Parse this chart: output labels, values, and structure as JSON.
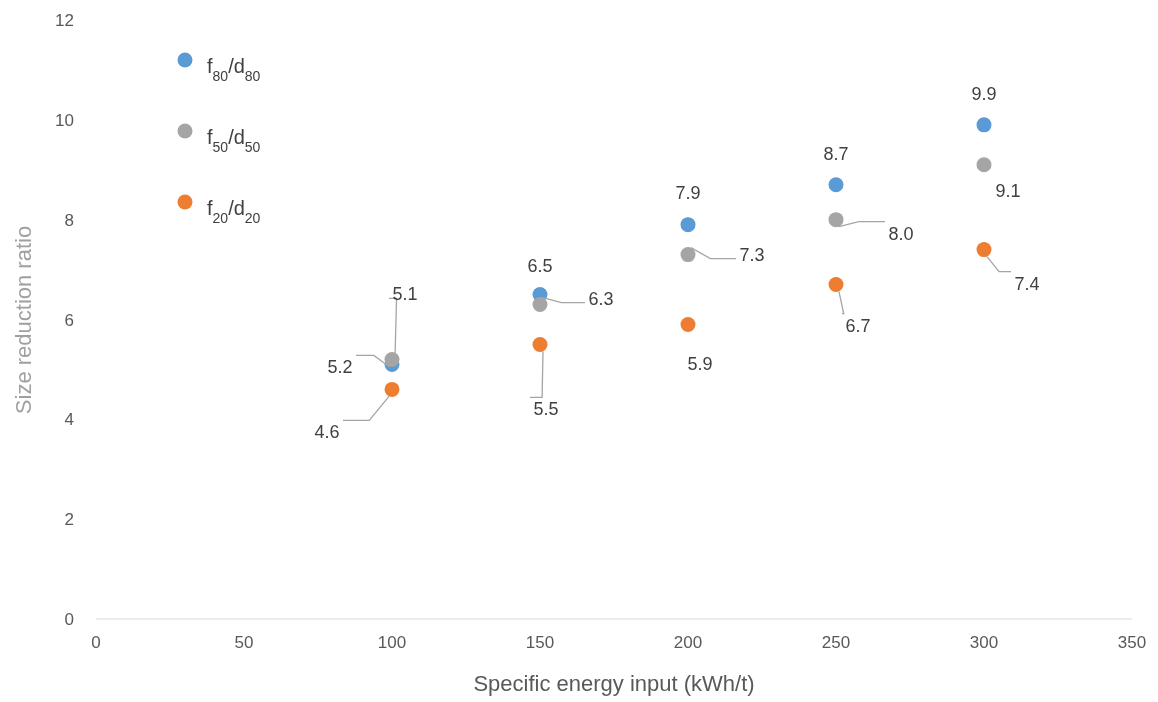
{
  "chart_data": {
    "type": "scatter",
    "xlabel": "Specific energy input (kWh/t)",
    "ylabel": "Size reduction ratio",
    "xlim": [
      0,
      350
    ],
    "xticks": [
      0,
      50,
      100,
      150,
      200,
      250,
      300,
      350
    ],
    "ylim": [
      0,
      12
    ],
    "yticks": [
      0,
      2,
      4,
      6,
      8,
      10,
      12
    ],
    "grid": false,
    "legend": "top left",
    "marker": "circle",
    "series": [
      {
        "name": "f$_{80}$/d$_{80}$",
        "color": "#5b9bd5",
        "x": [
          100,
          150,
          200,
          250,
          300
        ],
        "values": [
          5.1,
          6.5,
          7.9,
          8.7,
          9.9
        ],
        "value_labels": [
          "5.1",
          "6.5",
          "7.9",
          "8.7",
          "9.9"
        ]
      },
      {
        "name": "f$_{50}$/d$_{50}$",
        "color": "#a5a5a5",
        "x": [
          100,
          150,
          200,
          250,
          300
        ],
        "values": [
          5.2,
          6.3,
          7.3,
          8.0,
          9.1
        ],
        "value_labels": [
          "5.2",
          "6.3",
          "7.3",
          "8.0",
          "9.1"
        ]
      },
      {
        "name": "f$_{20}$/d$_{20}$",
        "color": "#ed7d31",
        "x": [
          100,
          150,
          200,
          250,
          300
        ],
        "values": [
          4.6,
          5.5,
          5.9,
          6.7,
          7.4
        ],
        "value_labels": [
          "4.6",
          "5.5",
          "5.9",
          "6.7",
          "7.4"
        ]
      }
    ]
  }
}
